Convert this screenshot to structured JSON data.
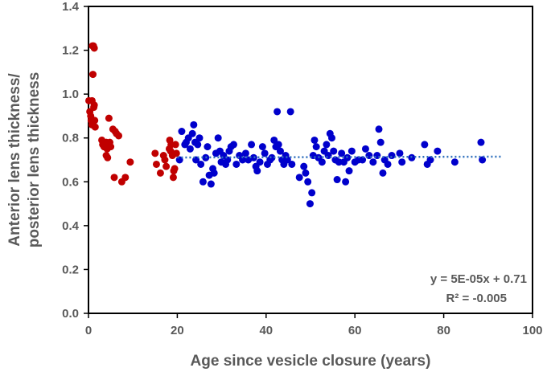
{
  "chart_data": {
    "type": "scatter",
    "xlabel": "Age since vesicle closure (years)",
    "ylabel_lines": [
      "Anterior lens thickness/",
      "posterior lens thickness"
    ],
    "xlim": [
      0,
      100
    ],
    "ylim": [
      0,
      1.4
    ],
    "x_ticks": [
      "0",
      "20",
      "40",
      "60",
      "80",
      "100"
    ],
    "y_ticks": [
      "0.0",
      "0.2",
      "0.4",
      "0.6",
      "0.8",
      "1.0",
      "1.2",
      "1.4"
    ],
    "grid": false,
    "legend": "none",
    "colors": {
      "red_series": "#c00000",
      "blue_series": "#0000cc",
      "trendline": "#2e6fbd",
      "text": "#595959"
    },
    "trendline": {
      "style": "dotted",
      "slope": 5e-05,
      "intercept": 0.71,
      "x_range": [
        20,
        93
      ],
      "equation_label": "y = 5E-05x + 0.71",
      "r2_label": "R² = -0.005"
    },
    "series": [
      {
        "color": "#c00000",
        "points": [
          [
            0.1,
            0.97
          ],
          [
            0.3,
            0.92
          ],
          [
            0.5,
            0.9
          ],
          [
            0.6,
            0.88
          ],
          [
            0.8,
            0.86
          ],
          [
            0.9,
            1.22
          ],
          [
            1.1,
            1.22
          ],
          [
            1.3,
            1.21
          ],
          [
            1.0,
            1.09
          ],
          [
            0.8,
            0.97
          ],
          [
            1.3,
            0.95
          ],
          [
            1.4,
            0.88
          ],
          [
            1.5,
            0.85
          ],
          [
            1.2,
            0.94
          ],
          [
            3.0,
            0.79
          ],
          [
            3.2,
            0.77
          ],
          [
            3.5,
            0.76
          ],
          [
            4.0,
            0.78
          ],
          [
            4.2,
            0.75
          ],
          [
            4.0,
            0.72
          ],
          [
            4.3,
            0.71
          ],
          [
            4.6,
            0.89
          ],
          [
            4.8,
            0.78
          ],
          [
            5.0,
            0.76
          ],
          [
            5.5,
            0.84
          ],
          [
            6.0,
            0.83
          ],
          [
            6.3,
            0.82
          ],
          [
            6.8,
            0.81
          ],
          [
            5.8,
            0.62
          ],
          [
            7.5,
            0.6
          ],
          [
            8.3,
            0.62
          ],
          [
            9.4,
            0.69
          ],
          [
            15.0,
            0.73
          ],
          [
            15.3,
            0.68
          ],
          [
            16.2,
            0.64
          ],
          [
            16.9,
            0.72
          ],
          [
            17.2,
            0.7
          ],
          [
            17.5,
            0.67
          ],
          [
            18.3,
            0.79
          ],
          [
            18.6,
            0.77
          ],
          [
            18.9,
            0.72
          ],
          [
            19.1,
            0.62
          ],
          [
            19.4,
            0.66
          ],
          [
            19.6,
            0.77
          ],
          [
            19.8,
            0.73
          ],
          [
            18.2,
            0.75
          ],
          [
            18.5,
            0.74
          ],
          [
            19.2,
            0.65
          ]
        ]
      },
      {
        "color": "#0000cc",
        "points": [
          [
            20.5,
            0.7
          ],
          [
            21.0,
            0.83
          ],
          [
            21.7,
            0.77
          ],
          [
            22.0,
            0.78
          ],
          [
            22.5,
            0.8
          ],
          [
            22.9,
            0.75
          ],
          [
            23.4,
            0.82
          ],
          [
            23.7,
            0.86
          ],
          [
            24.0,
            0.78
          ],
          [
            24.2,
            0.7
          ],
          [
            24.6,
            0.77
          ],
          [
            25.0,
            0.8
          ],
          [
            25.3,
            0.68
          ],
          [
            25.8,
            0.6
          ],
          [
            26.4,
            0.71
          ],
          [
            26.8,
            0.76
          ],
          [
            27.2,
            0.63
          ],
          [
            27.6,
            0.59
          ],
          [
            28.0,
            0.66
          ],
          [
            28.3,
            0.64
          ],
          [
            28.7,
            0.73
          ],
          [
            29.2,
            0.8
          ],
          [
            29.6,
            0.74
          ],
          [
            29.9,
            0.69
          ],
          [
            30.4,
            0.72
          ],
          [
            30.9,
            0.68
          ],
          [
            31.3,
            0.7
          ],
          [
            31.7,
            0.74
          ],
          [
            32.1,
            0.76
          ],
          [
            32.7,
            0.77
          ],
          [
            33.3,
            0.68
          ],
          [
            34.0,
            0.72
          ],
          [
            34.7,
            0.7
          ],
          [
            35.4,
            0.73
          ],
          [
            36.0,
            0.7
          ],
          [
            36.7,
            0.77
          ],
          [
            37.2,
            0.71
          ],
          [
            37.7,
            0.67
          ],
          [
            38.0,
            0.65
          ],
          [
            38.6,
            0.69
          ],
          [
            39.2,
            0.76
          ],
          [
            39.7,
            0.73
          ],
          [
            40.3,
            0.68
          ],
          [
            40.9,
            0.7
          ],
          [
            41.3,
            0.71
          ],
          [
            41.8,
            0.79
          ],
          [
            42.2,
            0.76
          ],
          [
            42.5,
            0.92
          ],
          [
            42.8,
            0.77
          ],
          [
            43.2,
            0.74
          ],
          [
            43.6,
            0.7
          ],
          [
            44.0,
            0.68
          ],
          [
            44.4,
            0.72
          ],
          [
            44.8,
            0.7
          ],
          [
            45.5,
            0.92
          ],
          [
            45.8,
            0.68
          ],
          [
            47.5,
            0.62
          ],
          [
            48.5,
            0.67
          ],
          [
            48.9,
            0.64
          ],
          [
            49.4,
            0.6
          ],
          [
            49.9,
            0.5
          ],
          [
            50.3,
            0.55
          ],
          [
            50.6,
            0.72
          ],
          [
            50.9,
            0.79
          ],
          [
            51.3,
            0.76
          ],
          [
            51.8,
            0.71
          ],
          [
            52.6,
            0.69
          ],
          [
            53.1,
            0.74
          ],
          [
            53.6,
            0.77
          ],
          [
            54.0,
            0.72
          ],
          [
            54.4,
            0.82
          ],
          [
            54.8,
            0.8
          ],
          [
            55.2,
            0.74
          ],
          [
            55.6,
            0.7
          ],
          [
            56.0,
            0.61
          ],
          [
            56.4,
            0.69
          ],
          [
            57.0,
            0.73
          ],
          [
            57.5,
            0.69
          ],
          [
            57.9,
            0.6
          ],
          [
            58.3,
            0.71
          ],
          [
            58.7,
            0.65
          ],
          [
            59.3,
            0.74
          ],
          [
            60.0,
            0.69
          ],
          [
            60.8,
            0.7
          ],
          [
            61.7,
            0.7
          ],
          [
            62.4,
            0.75
          ],
          [
            63.2,
            0.72
          ],
          [
            64.1,
            0.69
          ],
          [
            65.0,
            0.72
          ],
          [
            65.4,
            0.84
          ],
          [
            65.8,
            0.78
          ],
          [
            66.3,
            0.64
          ],
          [
            66.7,
            0.7
          ],
          [
            67.4,
            0.68
          ],
          [
            68.3,
            0.72
          ],
          [
            70.1,
            0.73
          ],
          [
            70.6,
            0.69
          ],
          [
            72.8,
            0.71
          ],
          [
            75.7,
            0.77
          ],
          [
            76.3,
            0.68
          ],
          [
            77.0,
            0.7
          ],
          [
            78.6,
            0.74
          ],
          [
            82.5,
            0.69
          ],
          [
            88.4,
            0.78
          ],
          [
            88.7,
            0.7
          ]
        ]
      }
    ]
  }
}
